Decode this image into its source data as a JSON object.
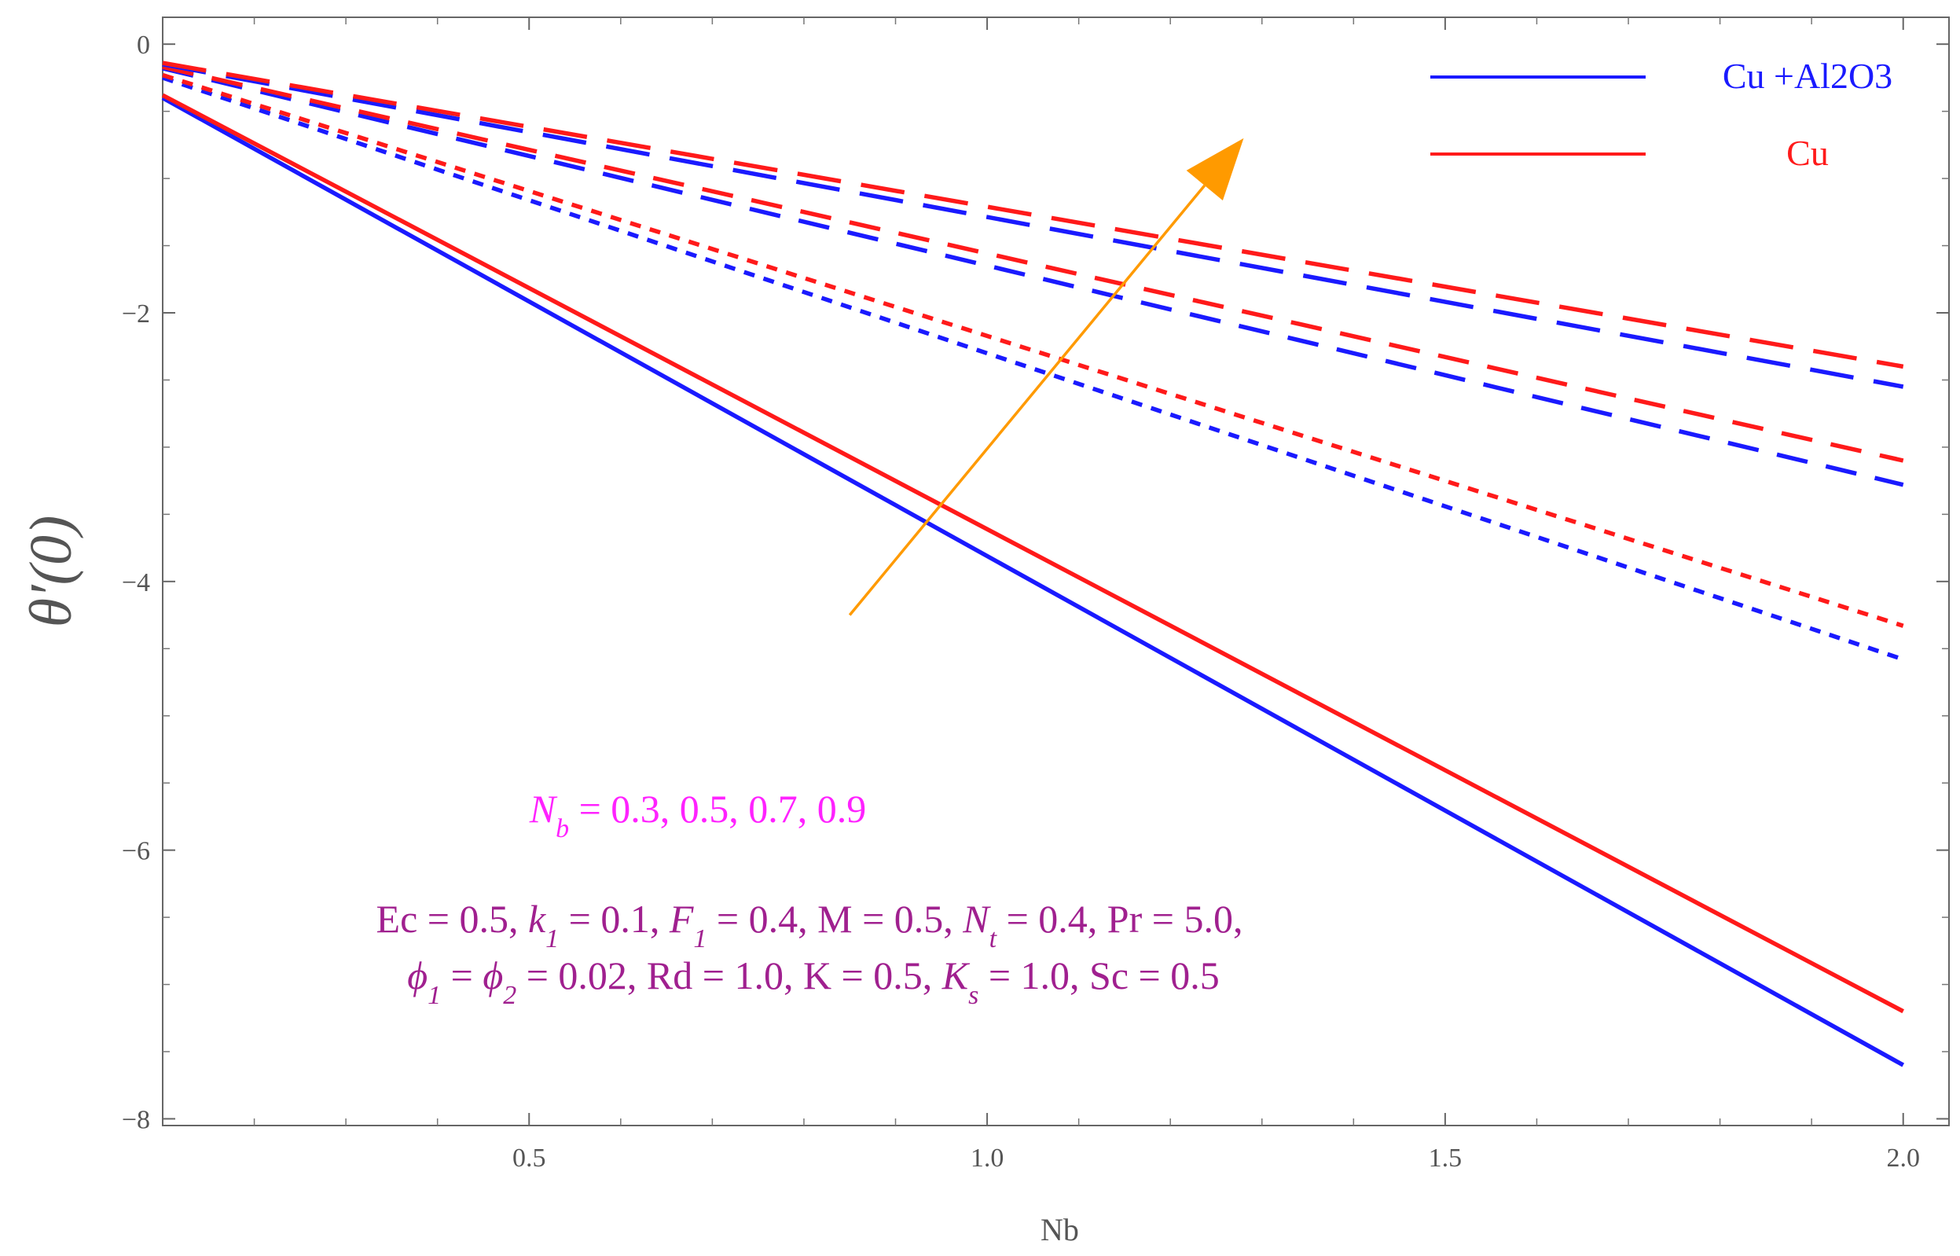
{
  "chart_data": {
    "type": "line",
    "title": "",
    "xlabel": "Nb",
    "ylabel": "θ′(0)",
    "xlim": [
      0.1,
      2.05
    ],
    "ylim": [
      -8.05,
      0.2
    ],
    "xticks": [
      0.5,
      1.0,
      1.5,
      2.0
    ],
    "xtick_labels": [
      "0.5",
      "1.0",
      "1.5",
      "2.0"
    ],
    "yticks": [
      0,
      -2,
      -4,
      -6,
      -8
    ],
    "ytick_labels": [
      "0",
      "−2",
      "−4",
      "−6",
      "−8"
    ],
    "grid": false,
    "legend_position": "top-right",
    "legend": [
      {
        "label": "Cu +Al2O3",
        "color": "#1a1aff"
      },
      {
        "label": "Cu",
        "color": "#ff1a1a"
      }
    ],
    "series": [
      {
        "group": "Cu +Al2O3",
        "style": "solid",
        "color": "#1a1aff",
        "x": [
          0.1,
          2.0
        ],
        "y": [
          -0.4,
          -7.6
        ]
      },
      {
        "group": "Cu",
        "style": "solid",
        "color": "#ff1a1a",
        "x": [
          0.1,
          2.0
        ],
        "y": [
          -0.38,
          -7.2
        ]
      },
      {
        "group": "Cu +Al2O3",
        "style": "short-dash",
        "color": "#1a1aff",
        "x": [
          0.1,
          2.0
        ],
        "y": [
          -0.25,
          -4.58
        ]
      },
      {
        "group": "Cu",
        "style": "short-dash",
        "color": "#ff1a1a",
        "x": [
          0.1,
          2.0
        ],
        "y": [
          -0.23,
          -4.33
        ]
      },
      {
        "group": "Cu +Al2O3",
        "style": "medium-dash",
        "color": "#1a1aff",
        "x": [
          0.1,
          2.0
        ],
        "y": [
          -0.18,
          -3.28
        ]
      },
      {
        "group": "Cu",
        "style": "medium-dash",
        "color": "#ff1a1a",
        "x": [
          0.1,
          2.0
        ],
        "y": [
          -0.17,
          -3.1
        ]
      },
      {
        "group": "Cu +Al2O3",
        "style": "long-dash",
        "color": "#1a1aff",
        "x": [
          0.1,
          2.0
        ],
        "y": [
          -0.15,
          -2.55
        ]
      },
      {
        "group": "Cu",
        "style": "long-dash",
        "color": "#ff1a1a",
        "x": [
          0.1,
          2.0
        ],
        "y": [
          -0.14,
          -2.4
        ]
      }
    ],
    "trend_arrow": {
      "color": "#ff9a00",
      "from": [
        0.85,
        -4.25
      ],
      "to": [
        1.28,
        -0.7
      ]
    },
    "annotations": {
      "nb_values": {
        "text": "N_b = 0.3, 0.5, 0.7, 0.9",
        "color": "#ff22ff"
      },
      "params_line1": {
        "text": "Ec = 0.5, k_1 = 0.1, F_1 = 0.4, M = 0.5, N_t = 0.4, Pr = 5.0,",
        "color": "#a0208f"
      },
      "params_line2": {
        "text": "ϕ_1 = ϕ_2 = 0.02, Rd = 1.0, K = 0.5, K_s = 1.0, Sc = 0.5",
        "color": "#a0208f"
      }
    }
  }
}
